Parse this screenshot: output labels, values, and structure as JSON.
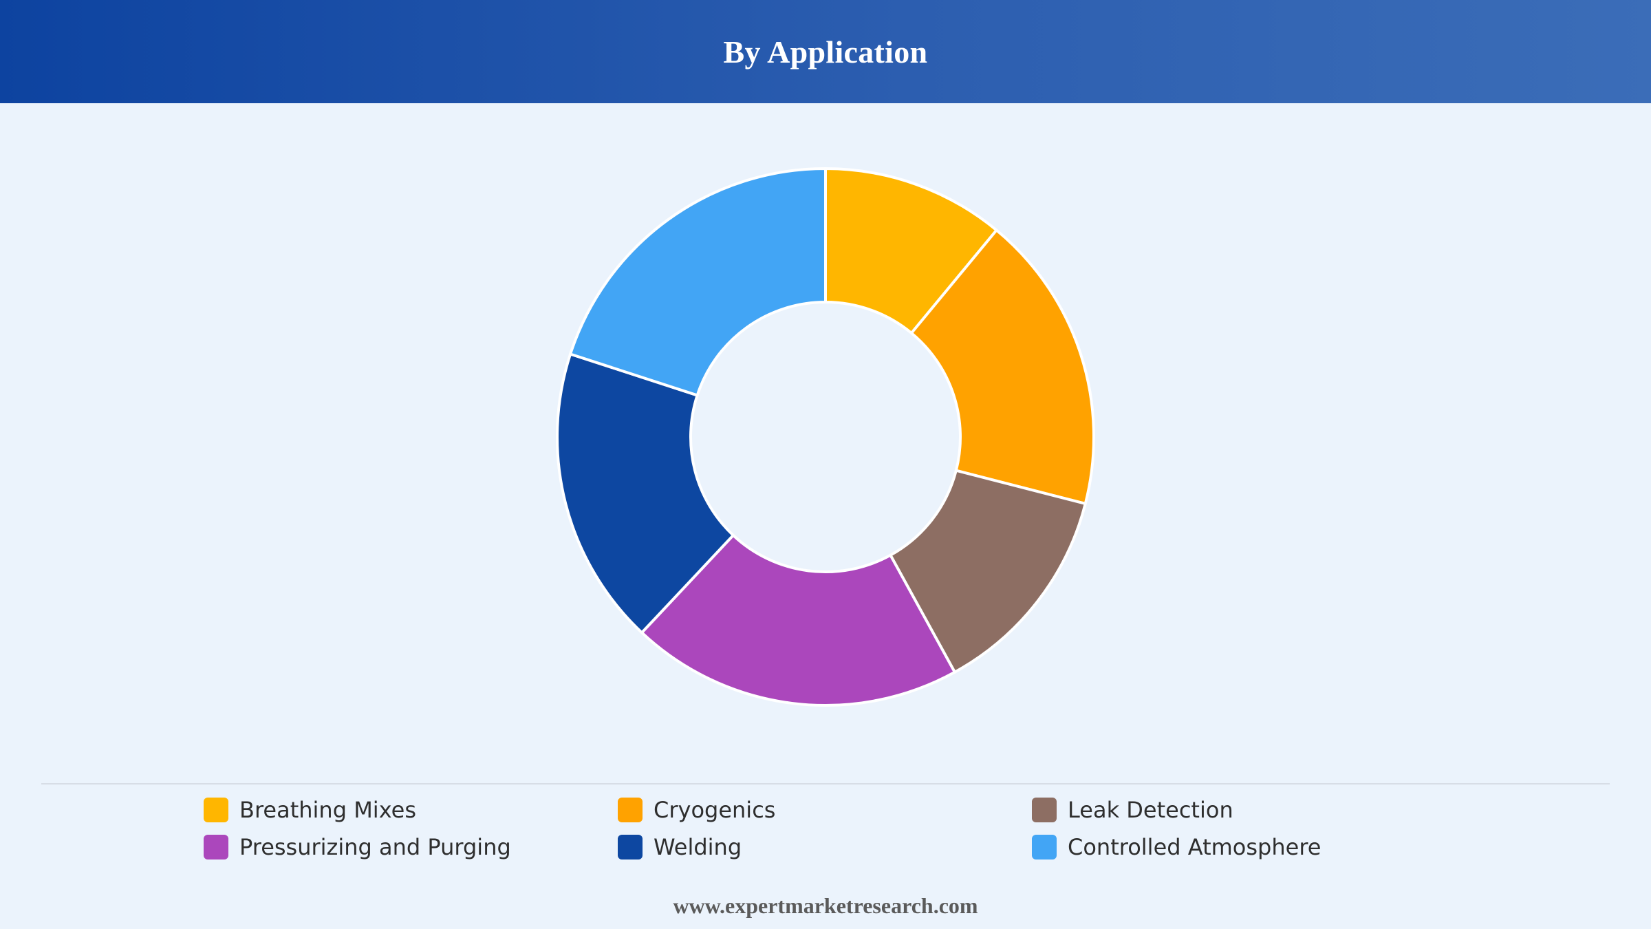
{
  "header": {
    "title": "By Application"
  },
  "chart_data": {
    "type": "pie",
    "variant": "donut",
    "title": "By Application",
    "units": "percent share",
    "categories": [
      "Breathing Mixes",
      "Cryogenics",
      "Leak Detection",
      "Pressurizing and Purging",
      "Welding",
      "Controlled Atmosphere"
    ],
    "values": [
      11,
      18,
      13,
      20,
      18,
      20
    ],
    "colors": [
      "#ffb600",
      "#ffa200",
      "#8d6e63",
      "#ab47bc",
      "#0d47a1",
      "#42a5f5"
    ],
    "start_angle_deg": 0,
    "direction": "clockwise",
    "slice_border_color": "#ffffff",
    "legend_position": "bottom",
    "legend_columns": 3
  },
  "footer": {
    "source": "www.expertmarketresearch.com"
  },
  "colors": {
    "page_background": "#ebf3fc",
    "header_start": "#0d43a0",
    "header_end": "#3b6db8",
    "title_text": "#ffffff",
    "legend_text": "#2e2e2e",
    "footer_text": "#5a5a5a"
  }
}
